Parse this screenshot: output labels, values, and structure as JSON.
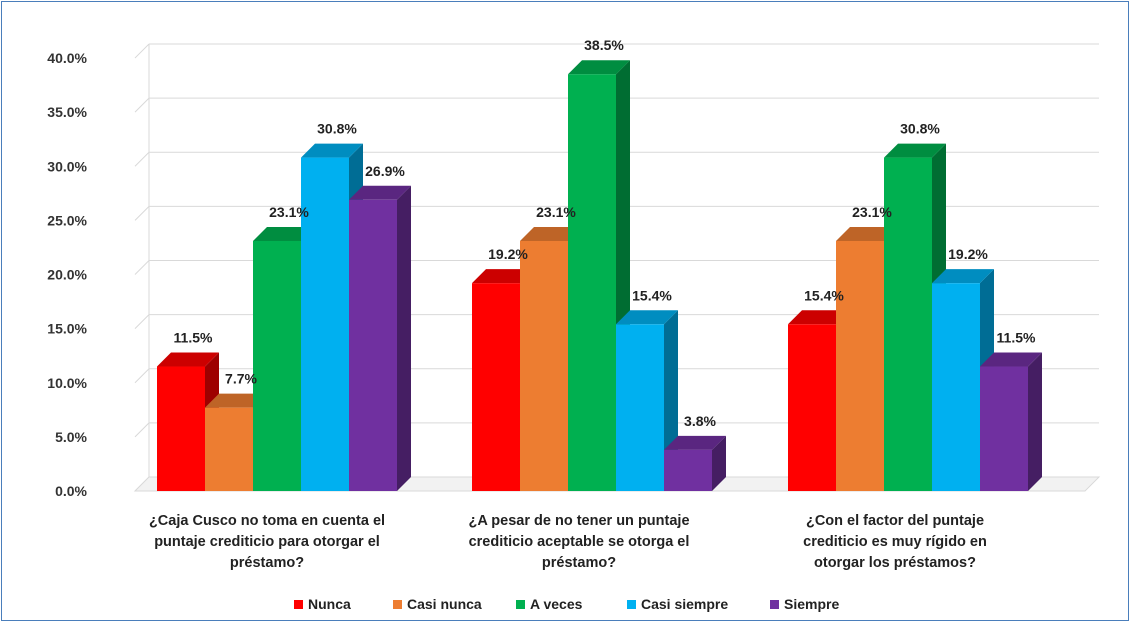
{
  "chart_data": {
    "type": "bar",
    "title": "",
    "xlabel": "",
    "ylabel": "",
    "ylim": [
      0,
      0.4
    ],
    "y_ticks": [
      "0.0%",
      "5.0%",
      "10.0%",
      "15.0%",
      "20.0%",
      "25.0%",
      "30.0%",
      "35.0%",
      "40.0%"
    ],
    "grid": true,
    "three_d": true,
    "legend_position": "bottom",
    "categories": [
      [
        "¿Caja Cusco no toma en cuenta el",
        "puntaje crediticio para otorgar el",
        "préstamo?"
      ],
      [
        "¿A pesar de no tener un puntaje",
        "crediticio aceptable se otorga el",
        "préstamo?"
      ],
      [
        "¿Con el factor del puntaje",
        "crediticio es muy rígido en",
        "otorgar los préstamos?"
      ]
    ],
    "series": [
      {
        "name": "Nunca",
        "color": "#ff0000",
        "values": [
          0.115,
          0.192,
          0.154
        ],
        "labels": [
          "11.5%",
          "19.2%",
          "15.4%"
        ]
      },
      {
        "name": "Casi nunca",
        "color": "#ed7d31",
        "values": [
          0.077,
          0.231,
          0.231
        ],
        "labels": [
          "7.7%",
          "23.1%",
          "23.1%"
        ]
      },
      {
        "name": "A veces",
        "color": "#00b050",
        "values": [
          0.231,
          0.385,
          0.308
        ],
        "labels": [
          "23.1%",
          "38.5%",
          "30.8%"
        ]
      },
      {
        "name": "Casi siempre",
        "color": "#00b0f0",
        "values": [
          0.308,
          0.154,
          0.192
        ],
        "labels": [
          "30.8%",
          "15.4%",
          "19.2%"
        ]
      },
      {
        "name": "Siempre",
        "color": "#7030a0",
        "values": [
          0.269,
          0.038,
          0.115
        ],
        "labels": [
          "26.9%",
          "3.8%",
          "11.5%"
        ]
      }
    ]
  }
}
